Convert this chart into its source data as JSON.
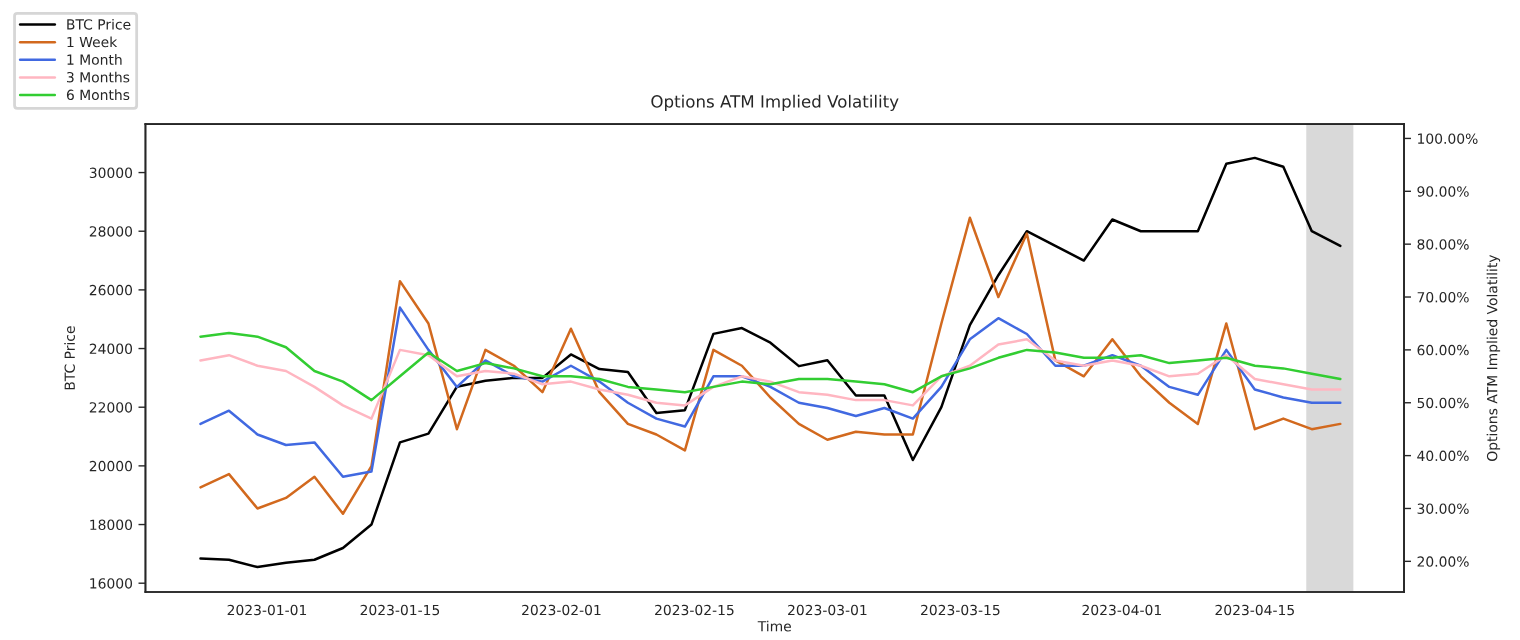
{
  "chart_data": {
    "type": "line",
    "title": "Options ATM Implied Volatility",
    "xlabel": "Time",
    "ylabel": "BTC Price",
    "y2label": "Options ATM Implied Volatility",
    "legend": "top left",
    "grid": false,
    "marker": "none",
    "line_style": "solid",
    "x": [
      "2022-12-25",
      "2022-12-28",
      "2022-12-31",
      "2023-01-03",
      "2023-01-06",
      "2023-01-09",
      "2023-01-12",
      "2023-01-15",
      "2023-01-18",
      "2023-01-21",
      "2023-01-24",
      "2023-01-27",
      "2023-01-30",
      "2023-02-02",
      "2023-02-05",
      "2023-02-08",
      "2023-02-11",
      "2023-02-14",
      "2023-02-17",
      "2023-02-20",
      "2023-02-23",
      "2023-02-26",
      "2023-03-01",
      "2023-03-04",
      "2023-03-07",
      "2023-03-10",
      "2023-03-13",
      "2023-03-16",
      "2023-03-19",
      "2023-03-22",
      "2023-03-25",
      "2023-03-28",
      "2023-03-31",
      "2023-04-03",
      "2023-04-06",
      "2023-04-09",
      "2023-04-12",
      "2023-04-15",
      "2023-04-18",
      "2023-04-21",
      "2023-04-24"
    ],
    "xlim": [
      "2022-12-19T05:00",
      "2023-04-30T17:00"
    ],
    "xticks": [
      {
        "value": "2023-01-01",
        "label": "2023-01-01"
      },
      {
        "value": "2023-01-15",
        "label": "2023-01-15"
      },
      {
        "value": "2023-02-01",
        "label": "2023-02-01"
      },
      {
        "value": "2023-02-15",
        "label": "2023-02-15"
      },
      {
        "value": "2023-03-01",
        "label": "2023-03-01"
      },
      {
        "value": "2023-03-15",
        "label": "2023-03-15"
      },
      {
        "value": "2023-04-01",
        "label": "2023-04-01"
      },
      {
        "value": "2023-04-15",
        "label": "2023-04-15"
      }
    ],
    "ylim": [
      15700,
      31650
    ],
    "yticks": [
      16000,
      18000,
      20000,
      22000,
      24000,
      26000,
      28000,
      30000
    ],
    "y2lim": [
      14.2,
      102.7
    ],
    "y2ticks": [
      {
        "value": 20,
        "label": "20.00%"
      },
      {
        "value": 30,
        "label": "30.00%"
      },
      {
        "value": 40,
        "label": "40.00%"
      },
      {
        "value": 50,
        "label": "50.00%"
      },
      {
        "value": 60,
        "label": "60.00%"
      },
      {
        "value": 70,
        "label": "70.00%"
      },
      {
        "value": 80,
        "label": "80.00%"
      },
      {
        "value": 90,
        "label": "90.00%"
      },
      {
        "value": 100,
        "label": "100.00%"
      }
    ],
    "bands": [
      {
        "axis": "x",
        "from": "2023-04-20T10:00",
        "to": "2023-04-25T09:00",
        "color": "#d9d9d9"
      }
    ],
    "series": [
      {
        "name": "BTC Price",
        "color": "#000000",
        "values": [
          16840,
          16800,
          16550,
          16700,
          16800,
          17200,
          18000,
          20800,
          21100,
          22700,
          22900,
          23000,
          23000,
          23800,
          23300,
          23200,
          21800,
          21900,
          24500,
          24700,
          24200,
          23400,
          23600,
          22400,
          22400,
          20200,
          22000,
          24800,
          26500,
          28000,
          27500,
          27000,
          28400,
          28000,
          28000,
          28000,
          30300,
          30500,
          30200,
          28000,
          27500
        ]
      },
      {
        "name": "1 Week",
        "color": "#d2691e",
        "axis": "y2",
        "values": [
          34,
          36.5,
          30,
          32,
          36,
          29,
          38,
          73,
          65,
          45,
          60,
          57,
          52,
          64,
          52,
          46,
          44,
          41,
          60,
          57,
          51,
          46,
          43,
          44.5,
          44,
          44,
          65,
          85,
          70,
          82,
          58,
          55,
          62,
          55,
          50,
          46,
          65,
          45,
          47,
          45,
          46
        ]
      },
      {
        "name": "1 Month",
        "color": "#4169e1",
        "axis": "y2",
        "values": [
          46,
          48.5,
          44,
          42,
          42.5,
          36,
          37,
          68,
          60,
          53,
          58,
          55,
          54,
          57,
          54,
          50,
          47,
          45.5,
          55,
          55,
          53,
          50,
          49,
          47.5,
          49,
          47,
          53,
          62,
          66,
          63,
          57,
          57,
          59,
          57,
          53,
          51.5,
          60,
          52.5,
          51,
          50,
          50
        ]
      },
      {
        "name": "3 Months",
        "color": "#ffb6c1",
        "axis": "y2",
        "values": [
          58,
          59,
          57,
          56,
          53,
          49.5,
          47,
          60,
          59,
          55,
          56,
          55.5,
          53.5,
          54,
          52.5,
          51.5,
          50,
          49.5,
          53,
          55,
          54,
          52,
          51.5,
          50.5,
          50.5,
          49.5,
          55,
          57,
          61,
          62,
          58,
          57,
          58,
          57,
          55,
          55.5,
          59,
          54.5,
          53.5,
          52.5,
          52.5
        ]
      },
      {
        "name": "6 Months",
        "color": "#32cd32",
        "axis": "y2",
        "values": [
          62.5,
          63.2,
          62.5,
          60.5,
          56,
          54,
          50.5,
          55,
          59.5,
          56,
          57.5,
          56.5,
          55,
          55,
          54.5,
          53,
          52.5,
          52,
          53,
          54,
          53.5,
          54.5,
          54.5,
          54,
          53.5,
          52,
          55,
          56.5,
          58.5,
          60,
          59.5,
          58.5,
          58.5,
          59,
          57.5,
          58,
          58.5,
          57,
          56.5,
          55.5,
          54.5
        ]
      }
    ]
  }
}
